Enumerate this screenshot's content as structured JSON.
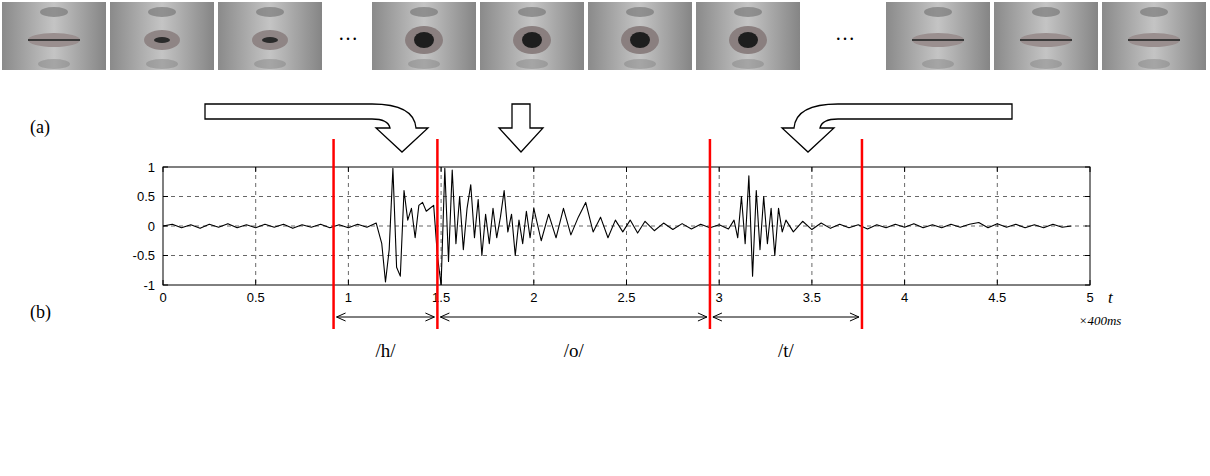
{
  "chart_data": {
    "type": "line",
    "panels": [
      "(a)",
      "(b)"
    ],
    "image_strip": {
      "separator": "…"
    },
    "x_label": "t",
    "x_unit": "×400ms",
    "xlim": [
      0,
      5
    ],
    "ylim": [
      -1,
      1
    ],
    "xticks": [
      0,
      0.5,
      1,
      1.5,
      2,
      2.5,
      3,
      3.5,
      4,
      4.5,
      5
    ],
    "yticks": [
      -1,
      -0.5,
      0,
      0.5,
      1
    ],
    "grid": true,
    "x": [
      0,
      0.05,
      0.1,
      0.15,
      0.2,
      0.25,
      0.3,
      0.35,
      0.4,
      0.45,
      0.5,
      0.55,
      0.6,
      0.65,
      0.7,
      0.75,
      0.8,
      0.85,
      0.9,
      0.95,
      1.0,
      1.05,
      1.1,
      1.15,
      1.18,
      1.2,
      1.22,
      1.24,
      1.26,
      1.28,
      1.3,
      1.32,
      1.34,
      1.36,
      1.38,
      1.4,
      1.42,
      1.44,
      1.46,
      1.48,
      1.5,
      1.52,
      1.54,
      1.56,
      1.58,
      1.6,
      1.62,
      1.64,
      1.66,
      1.68,
      1.7,
      1.72,
      1.74,
      1.76,
      1.78,
      1.8,
      1.82,
      1.84,
      1.86,
      1.88,
      1.9,
      1.92,
      1.94,
      1.96,
      1.98,
      2.0,
      2.04,
      2.08,
      2.12,
      2.16,
      2.2,
      2.24,
      2.28,
      2.32,
      2.36,
      2.4,
      2.44,
      2.48,
      2.52,
      2.56,
      2.6,
      2.65,
      2.7,
      2.75,
      2.8,
      2.85,
      2.9,
      2.95,
      3.0,
      3.05,
      3.08,
      3.1,
      3.12,
      3.14,
      3.16,
      3.18,
      3.2,
      3.22,
      3.24,
      3.26,
      3.28,
      3.3,
      3.32,
      3.34,
      3.36,
      3.4,
      3.45,
      3.5,
      3.55,
      3.6,
      3.65,
      3.7,
      3.75,
      3.8,
      3.85,
      3.9,
      3.95,
      4.0,
      4.05,
      4.1,
      4.15,
      4.2,
      4.25,
      4.3,
      4.35,
      4.4,
      4.45,
      4.5,
      4.55,
      4.6,
      4.65,
      4.7,
      4.75,
      4.8,
      4.85,
      4.9
    ],
    "series": [
      {
        "color": "#000000",
        "values": [
          0,
          0.03,
          -0.03,
          0.02,
          -0.04,
          0.03,
          -0.02,
          0.04,
          -0.03,
          0.02,
          -0.03,
          0.03,
          -0.02,
          0.03,
          -0.04,
          0.02,
          -0.02,
          0.03,
          -0.03,
          0.02,
          -0.03,
          0.03,
          -0.02,
          0.05,
          -0.3,
          -0.95,
          -0.4,
          0.98,
          -0.7,
          -0.85,
          0.6,
          0.1,
          0.3,
          -0.2,
          0.35,
          0.4,
          0.25,
          0.3,
          0.35,
          -0.5,
          -1,
          0.98,
          -0.6,
          0.95,
          -0.3,
          0.5,
          -0.4,
          0.3,
          0.7,
          -0.2,
          0.45,
          -0.5,
          0.2,
          -0.3,
          0.3,
          -0.2,
          0.15,
          0.6,
          -0.1,
          0.2,
          -0.5,
          0.1,
          -0.3,
          0.25,
          -0.2,
          0.3,
          -0.25,
          0.2,
          -0.2,
          0.3,
          -0.15,
          0.15,
          0.4,
          -0.1,
          0.15,
          -0.2,
          0.1,
          -0.1,
          0.1,
          -0.12,
          0.08,
          -0.08,
          0.05,
          -0.06,
          0.04,
          -0.05,
          0.03,
          -0.03,
          0.02,
          -0.05,
          0.1,
          -0.2,
          0.5,
          -0.3,
          0.85,
          -0.85,
          0.6,
          -0.4,
          0.5,
          -0.3,
          0.3,
          -0.5,
          0.3,
          -0.1,
          0.1,
          -0.1,
          0.08,
          -0.06,
          0.05,
          -0.04,
          0.03,
          -0.03,
          0.02,
          -0.05,
          0.02,
          -0.03,
          0.03,
          -0.02,
          0.04,
          -0.03,
          0.02,
          -0.03,
          0.03,
          -0.02,
          0.03,
          0.06,
          -0.03,
          0.04,
          -0.02,
          0.03,
          -0.03,
          0.02,
          -0.03,
          0.03,
          -0.02,
          0
        ]
      }
    ],
    "segments": [
      {
        "label": "/h/",
        "start": 0.92,
        "end": 1.48,
        "color": "#ff0000"
      },
      {
        "label": "/o/",
        "start": 1.48,
        "end": 2.95,
        "color": "#ff0000"
      },
      {
        "label": "/t/",
        "start": 2.95,
        "end": 3.77,
        "color": "#ff0000"
      }
    ]
  }
}
